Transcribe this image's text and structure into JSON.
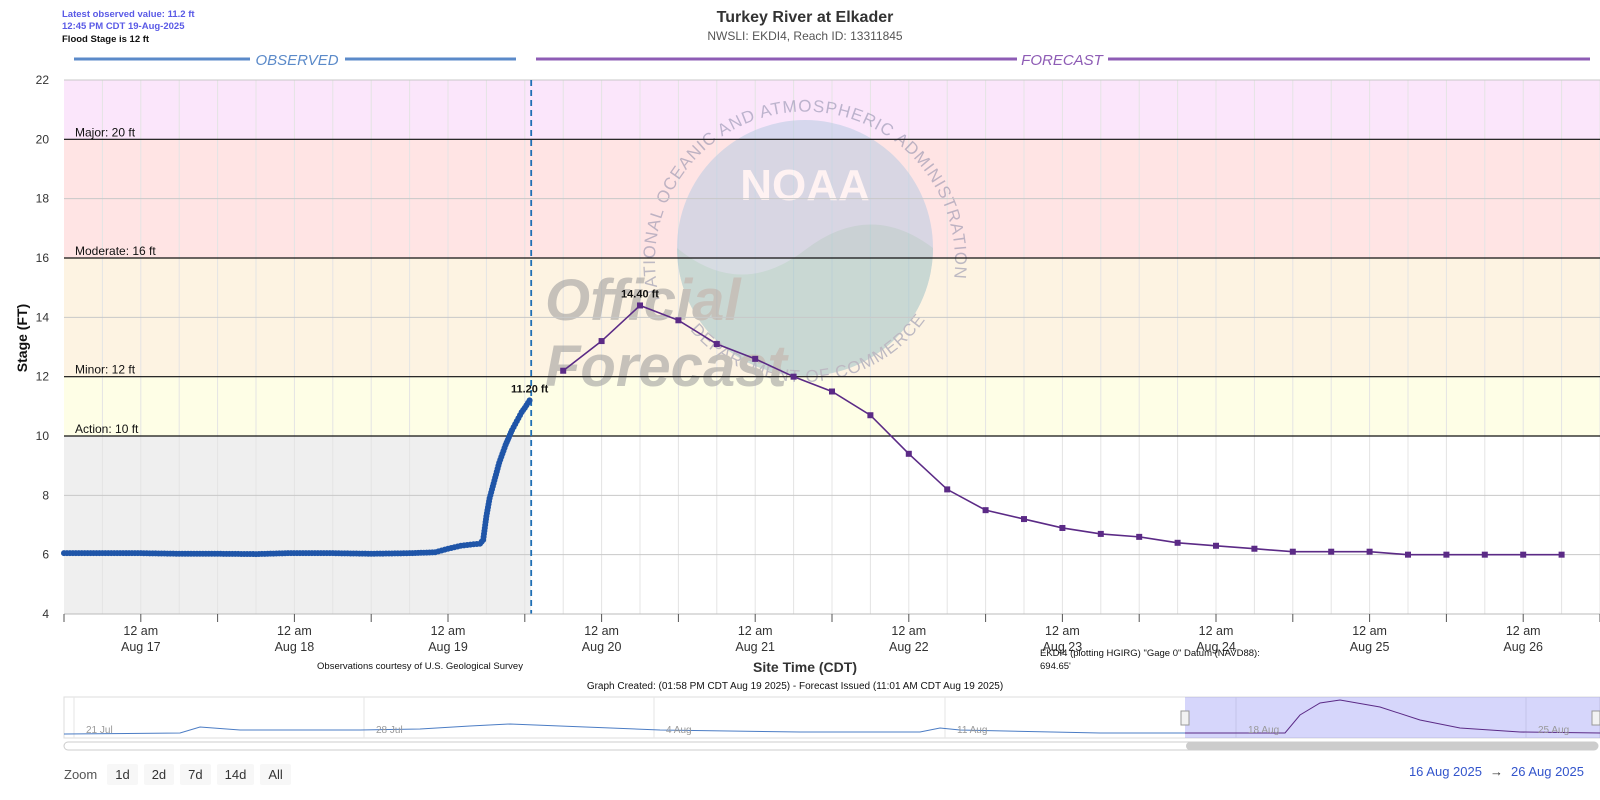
{
  "header": {
    "latest_observed": "Latest observed value: 11.2 ft",
    "latest_time": "12:45 PM CDT 19-Aug-2025",
    "flood_stage": "Flood Stage is 12 ft",
    "title": "Turkey River at Elkader",
    "subtitle": "NWSLI: EKDI4, Reach ID: 13311845"
  },
  "sections": {
    "observed": "OBSERVED",
    "forecast": "FORECAST"
  },
  "watermark": {
    "official": "Official",
    "forecast": "Forecast",
    "noaa": "NOAA",
    "ring_top": "NATIONAL OCEANIC AND ATMOSPHERIC ADMINISTRATION",
    "ring_bottom": "DEPARTMENT OF COMMERCE"
  },
  "notes": {
    "usgs": "Observations courtesy of U.S. Geological Survey",
    "datum_line1": "EKDI4 (plotting HGIRG) \"Gage 0\" Datum (NAVD88):",
    "datum_line2": "694.65'",
    "graph_created": "Graph Created: (01:58 PM CDT Aug 19 2025) - Forecast Issued (11:01 AM CDT Aug 19 2025)"
  },
  "navigator": {
    "labels": [
      "21 Jul",
      "28 Jul",
      "4 Aug",
      "11 Aug",
      "18 Aug",
      "25 Aug"
    ]
  },
  "zoom": {
    "label": "Zoom",
    "buttons": [
      "1d",
      "2d",
      "7d",
      "14d",
      "All"
    ]
  },
  "range": {
    "from": "16 Aug 2025",
    "arrow": "→",
    "to": "26 Aug 2025"
  },
  "colors": {
    "observed": "#1f55a8",
    "forecast": "#5b2a86",
    "major": "#fbe6fb",
    "moderate": "#ffe4e4",
    "minor_band": "#fdf3e2",
    "action_band": "#fefee6",
    "observed_bg": "#efefef",
    "observed_header": "#5b8ac9",
    "forecast_header": "#8e5cb5"
  },
  "chart_data": {
    "type": "line",
    "title": "Turkey River at Elkader",
    "subtitle": "NWSLI: EKDI4, Reach ID: 13311845",
    "ylabel": "Stage (FT)",
    "xlabel": "Site Time (CDT)",
    "ylim": [
      4,
      22
    ],
    "yticks": [
      4,
      6,
      8,
      10,
      12,
      14,
      16,
      18,
      20,
      22
    ],
    "xlim": [
      "2025-08-16 12:00",
      "2025-08-26 12:00"
    ],
    "x_ticks": [
      {
        "top": "12 am",
        "bottom": "Aug 17"
      },
      {
        "top": "12 am",
        "bottom": "Aug 18"
      },
      {
        "top": "12 am",
        "bottom": "Aug 19"
      },
      {
        "top": "12 am",
        "bottom": "Aug 20"
      },
      {
        "top": "12 am",
        "bottom": "Aug 21"
      },
      {
        "top": "12 am",
        "bottom": "Aug 22"
      },
      {
        "top": "12 am",
        "bottom": "Aug 23"
      },
      {
        "top": "12 am",
        "bottom": "Aug 24"
      },
      {
        "top": "12 am",
        "bottom": "Aug 25"
      },
      {
        "top": "12 am",
        "bottom": "Aug 26"
      }
    ],
    "thresholds": [
      {
        "label": "Action: 10 ft",
        "value": 10
      },
      {
        "label": "Minor: 12 ft",
        "value": 12
      },
      {
        "label": "Moderate: 16 ft",
        "value": 16
      },
      {
        "label": "Major: 20 ft",
        "value": 20
      }
    ],
    "now": "2025-08-19 13:00",
    "grid": true,
    "series": [
      {
        "name": "Observed",
        "marker": "circle",
        "points": [
          [
            "2025-08-16 12:00",
            6.05
          ],
          [
            "2025-08-16 18:00",
            6.05
          ],
          [
            "2025-08-17 00:00",
            6.05
          ],
          [
            "2025-08-17 06:00",
            6.03
          ],
          [
            "2025-08-17 12:00",
            6.03
          ],
          [
            "2025-08-17 18:00",
            6.02
          ],
          [
            "2025-08-17 23:00",
            6.05
          ],
          [
            "2025-08-18 06:00",
            6.05
          ],
          [
            "2025-08-18 12:00",
            6.03
          ],
          [
            "2025-08-18 18:00",
            6.05
          ],
          [
            "2025-08-18 22:00",
            6.08
          ],
          [
            "2025-08-19 00:00",
            6.2
          ],
          [
            "2025-08-19 02:00",
            6.3
          ],
          [
            "2025-08-19 04:00",
            6.35
          ],
          [
            "2025-08-19 05:00",
            6.37
          ],
          [
            "2025-08-19 05:30",
            6.5
          ],
          [
            "2025-08-19 06:00",
            7.3
          ],
          [
            "2025-08-19 06:30",
            7.9
          ],
          [
            "2025-08-19 07:00",
            8.3
          ],
          [
            "2025-08-19 07:30",
            8.7
          ],
          [
            "2025-08-19 08:00",
            9.1
          ],
          [
            "2025-08-19 08:30",
            9.4
          ],
          [
            "2025-08-19 09:00",
            9.7
          ],
          [
            "2025-08-19 09:30",
            9.95
          ],
          [
            "2025-08-19 10:00",
            10.2
          ],
          [
            "2025-08-19 10:30",
            10.4
          ],
          [
            "2025-08-19 11:00",
            10.6
          ],
          [
            "2025-08-19 11:30",
            10.8
          ],
          [
            "2025-08-19 12:00",
            10.95
          ],
          [
            "2025-08-19 12:45",
            11.2
          ]
        ],
        "label": {
          "x": "2025-08-19 12:45",
          "y": 11.2,
          "text": "11.20 ft"
        }
      },
      {
        "name": "Forecast",
        "marker": "square",
        "points": [
          [
            "2025-08-19 18:00",
            12.2
          ],
          [
            "2025-08-20 00:00",
            13.2
          ],
          [
            "2025-08-20 06:00",
            14.4
          ],
          [
            "2025-08-20 12:00",
            13.9
          ],
          [
            "2025-08-20 18:00",
            13.1
          ],
          [
            "2025-08-21 00:00",
            12.6
          ],
          [
            "2025-08-21 06:00",
            12.0
          ],
          [
            "2025-08-21 12:00",
            11.5
          ],
          [
            "2025-08-21 18:00",
            10.7
          ],
          [
            "2025-08-22 00:00",
            9.4
          ],
          [
            "2025-08-22 06:00",
            8.2
          ],
          [
            "2025-08-22 12:00",
            7.5
          ],
          [
            "2025-08-22 18:00",
            7.2
          ],
          [
            "2025-08-23 00:00",
            6.9
          ],
          [
            "2025-08-23 06:00",
            6.7
          ],
          [
            "2025-08-23 12:00",
            6.6
          ],
          [
            "2025-08-23 18:00",
            6.4
          ],
          [
            "2025-08-24 00:00",
            6.3
          ],
          [
            "2025-08-24 06:00",
            6.2
          ],
          [
            "2025-08-24 12:00",
            6.1
          ],
          [
            "2025-08-24 18:00",
            6.1
          ],
          [
            "2025-08-25 00:00",
            6.1
          ],
          [
            "2025-08-25 06:00",
            6.0
          ],
          [
            "2025-08-25 12:00",
            6.0
          ],
          [
            "2025-08-25 18:00",
            6.0
          ],
          [
            "2025-08-26 00:00",
            6.0
          ],
          [
            "2025-08-26 06:00",
            6.0
          ]
        ],
        "label": {
          "x": "2025-08-20 06:00",
          "y": 14.4,
          "text": "14.40 ft"
        }
      }
    ]
  }
}
